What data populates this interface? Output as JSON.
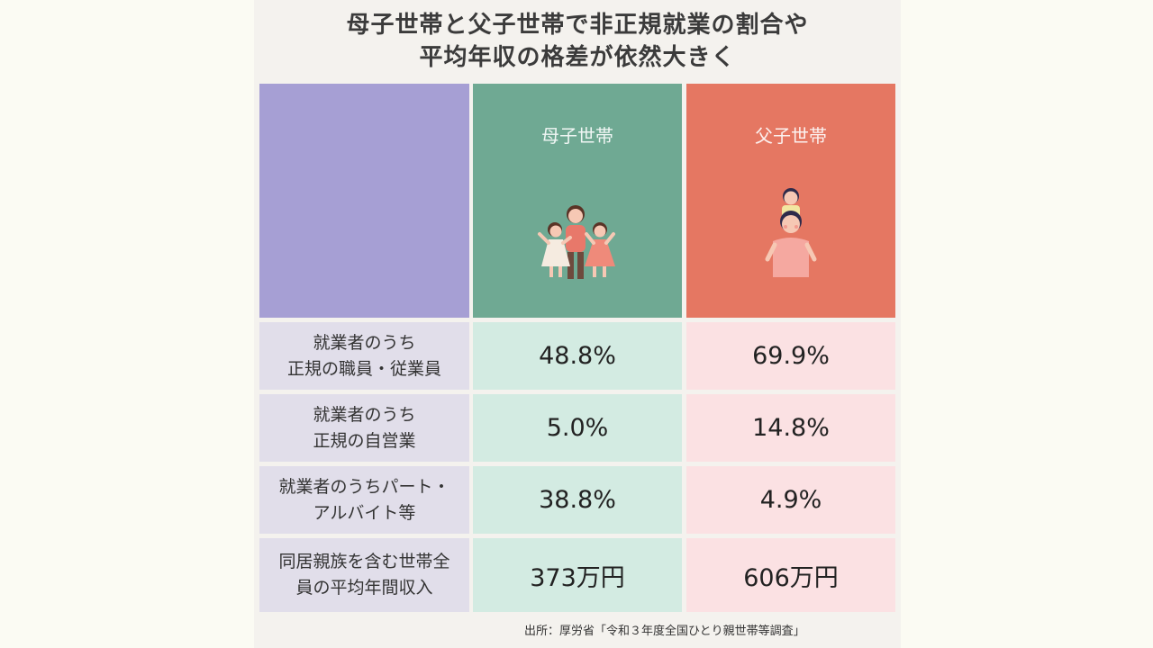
{
  "title": {
    "line1": "母子世帯と父子世帯で非正規就業の割合や",
    "line2": "平均年収の格差が依然大きく"
  },
  "columns": {
    "mother": "母子世帯",
    "father": "父子世帯"
  },
  "colors": {
    "corner": "#a69fd4",
    "mother_header": "#6fa993",
    "father_header": "#e57762",
    "mother_cell": "#d3ebe2",
    "father_cell": "#fbe1e3",
    "label_cell": "#e1deea"
  },
  "icons": {
    "mother_illustration": "mother-with-two-daughters-illustration",
    "father_illustration": "father-carrying-child-illustration"
  },
  "chart_data": {
    "type": "table",
    "title": "母子世帯と父子世帯で非正規就業の割合や平均年収の格差が依然大きく",
    "columns": [
      "母子世帯",
      "父子世帯"
    ],
    "rows": [
      {
        "label_line1": "就業者のうち",
        "label_line2": "正規の職員・従業員",
        "mother": "48.8%",
        "father": "69.9%",
        "mother_value": 48.8,
        "father_value": 69.9
      },
      {
        "label_line1": "就業者のうち",
        "label_line2": "正規の自営業",
        "mother": "5.0%",
        "father": "14.8%",
        "mother_value": 5.0,
        "father_value": 14.8
      },
      {
        "label_line1": "就業者のうちパート・",
        "label_line2": "アルバイト等",
        "mother": "38.8%",
        "father": "4.9%",
        "mother_value": 38.8,
        "father_value": 4.9
      },
      {
        "label_line1": "同居親族を含む世帯全",
        "label_line2": "員の平均年間収入",
        "mother": "373万円",
        "father": "606万円",
        "mother_value": 373,
        "father_value": 606
      }
    ]
  },
  "source": "出所：厚労省「令和３年度全国ひとり親世帯等調査」"
}
